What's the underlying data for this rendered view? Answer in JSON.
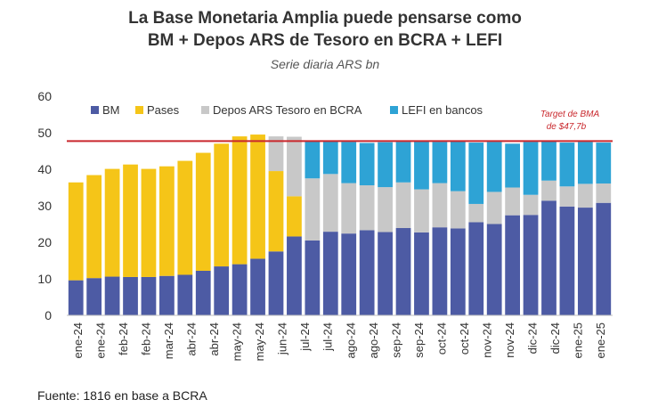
{
  "title_line1": "La Base Monetaria Amplia puede pensarse como",
  "title_line2": "BM + Depos ARS de Tesoro en BCRA + LEFI",
  "subtitle": "Serie diaria ARS bn",
  "source": "Fuente: 1816 en base a BCRA",
  "target_label_line1": "Target de BMA",
  "target_label_line2": "de $47,7b",
  "colors": {
    "BM": "#4d5ba4",
    "Pases": "#f5c518",
    "Depos": "#c8c8c8",
    "LEFI": "#2ea3d5",
    "target": "#c9282d"
  },
  "chart_data": {
    "type": "bar",
    "stacked": true,
    "ylim": [
      0,
      60
    ],
    "yticks": [
      "0",
      "10",
      "20",
      "30",
      "40",
      "50",
      "60"
    ],
    "x_tick_labels": [
      "ene-24",
      "ene-24",
      "feb-24",
      "feb-24",
      "mar-24",
      "abr-24",
      "abr-24",
      "may-24",
      "may-24",
      "jun-24",
      "jul-24",
      "jul-24",
      "ago-24",
      "ago-24",
      "sep-24",
      "sep-24",
      "oct-24",
      "oct-24",
      "nov-24",
      "nov-24",
      "dic-24",
      "dic-24",
      "ene-25",
      "ene-25"
    ],
    "target_value": 47.7,
    "legend": [
      "BM",
      "Pases",
      "Depos ARS Tesoro en BCRA",
      "LEFI en bancos"
    ],
    "legend_position": "top",
    "series": [
      {
        "name": "BM",
        "values": [
          9.6,
          10.2,
          10.6,
          10.5,
          10.5,
          10.8,
          11.1,
          12.2,
          13.4,
          14.0,
          15.5,
          17.5,
          21.6,
          20.5,
          22.9,
          22.4,
          23.3,
          22.8,
          23.9,
          22.7,
          24.1,
          23.8,
          25.5,
          25.0,
          27.4,
          27.5,
          31.4,
          29.8,
          29.5,
          30.8
        ]
      },
      {
        "name": "Pases",
        "values": [
          26.8,
          28.2,
          29.5,
          30.8,
          29.6,
          30.0,
          31.2,
          32.3,
          33.6,
          35.0,
          34.0,
          22.0,
          11.0,
          0.0,
          0.0,
          0.0,
          0.0,
          0.0,
          0.0,
          0.0,
          0.0,
          0.0,
          0.0,
          0.0,
          0.0,
          0.0,
          0.0,
          0.0,
          0.0,
          0.0
        ]
      },
      {
        "name": "Depos ARS Tesoro en BCRA",
        "values": [
          0.0,
          0.0,
          0.0,
          0.0,
          0.0,
          0.0,
          0.0,
          0.0,
          0.0,
          0.0,
          0.0,
          9.5,
          16.3,
          17.0,
          15.8,
          13.8,
          12.3,
          12.3,
          12.5,
          11.8,
          12.1,
          10.2,
          5.0,
          8.8,
          7.6,
          5.5,
          5.5,
          5.5,
          6.5,
          5.3
        ]
      },
      {
        "name": "LEFI en bancos",
        "values": [
          0.0,
          0.0,
          0.0,
          0.0,
          0.0,
          0.0,
          0.0,
          0.0,
          0.0,
          0.0,
          0.0,
          0.0,
          0.0,
          10.2,
          9.1,
          11.3,
          11.6,
          12.3,
          11.1,
          13.1,
          11.3,
          13.6,
          16.8,
          13.7,
          12.0,
          14.5,
          10.8,
          12.0,
          11.5,
          11.2
        ]
      }
    ]
  }
}
